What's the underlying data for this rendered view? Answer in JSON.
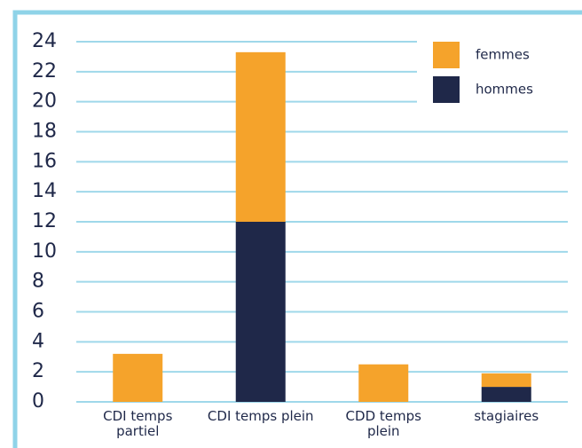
{
  "chart_data": {
    "type": "stacked_bar",
    "categories": [
      "CDI temps partiel",
      "CDI temps plein",
      "CDD temps plein",
      "stagiaires"
    ],
    "series": [
      {
        "name": "hommes",
        "color": "#1f2849",
        "values": [
          0,
          12,
          0,
          1
        ]
      },
      {
        "name": "femmes",
        "color": "#f5a32b",
        "values": [
          3.2,
          11.3,
          2.5,
          0.9
        ]
      }
    ],
    "ylim": [
      0,
      24
    ],
    "yticks": [
      0,
      2,
      4,
      6,
      8,
      10,
      12,
      14,
      16,
      18,
      20,
      22,
      24
    ],
    "grid": true,
    "legend": "top-right"
  }
}
